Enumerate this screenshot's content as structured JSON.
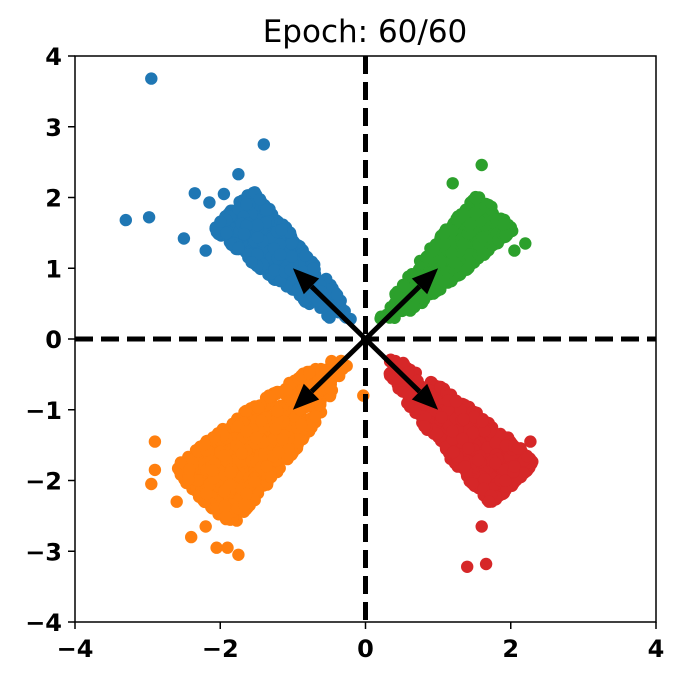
{
  "chart_data": {
    "type": "scatter",
    "title": "Epoch: 60/60",
    "xlabel": "",
    "ylabel": "",
    "xlim": [
      -4,
      4
    ],
    "ylim": [
      -4,
      4
    ],
    "xticks": [
      "−4",
      "−2",
      "0",
      "2",
      "4"
    ],
    "yticks": [
      "−4",
      "−3",
      "−2",
      "−1",
      "0",
      "1",
      "2",
      "3",
      "4"
    ],
    "xtick_values": [
      -4,
      -2,
      0,
      2,
      4
    ],
    "ytick_values": [
      -4,
      -3,
      -2,
      -1,
      0,
      1,
      2,
      3,
      4
    ],
    "grid": false,
    "reference_lines": [
      {
        "orientation": "vertical",
        "value": 0,
        "style": "dashed",
        "color": "#000000"
      },
      {
        "orientation": "horizontal",
        "value": 0,
        "style": "dashed",
        "color": "#000000"
      }
    ],
    "arrows": [
      {
        "from": [
          0,
          0
        ],
        "to": [
          1,
          1
        ]
      },
      {
        "from": [
          0,
          0
        ],
        "to": [
          -1,
          1
        ]
      },
      {
        "from": [
          0,
          0
        ],
        "to": [
          -1,
          -1
        ]
      },
      {
        "from": [
          0,
          0
        ],
        "to": [
          1,
          -1
        ]
      }
    ],
    "series": [
      {
        "color": "#1f77b4",
        "cluster": {
          "direction": [
            -1,
            1
          ],
          "count": 650,
          "r_min": 0.3,
          "r_max": 2.6,
          "spread": 0.25,
          "seed": 11
        },
        "points": [
          [
            -2.95,
            3.68
          ],
          [
            -1.4,
            2.75
          ],
          [
            -3.3,
            1.68
          ],
          [
            -2.98,
            1.72
          ],
          [
            -2.5,
            1.42
          ],
          [
            -2.35,
            2.06
          ],
          [
            -1.75,
            2.33
          ],
          [
            -2.15,
            1.93
          ],
          [
            -2.2,
            1.25
          ],
          [
            -1.95,
            2.05
          ]
        ]
      },
      {
        "color": "#2ca02c",
        "cluster": {
          "direction": [
            1,
            1
          ],
          "count": 650,
          "r_min": 0.3,
          "r_max": 2.55,
          "spread": 0.23,
          "seed": 23
        },
        "points": [
          [
            1.6,
            2.46
          ],
          [
            1.2,
            2.2
          ],
          [
            2.2,
            1.35
          ],
          [
            2.05,
            1.25
          ],
          [
            1.9,
            1.62
          ],
          [
            0.4,
            0.3
          ]
        ]
      },
      {
        "color": "#ff7f0e",
        "cluster": {
          "direction": [
            -1,
            -1
          ],
          "count": 900,
          "r_min": 0.3,
          "r_max": 3.2,
          "spread": 0.3,
          "seed": 37
        },
        "points": [
          [
            -0.03,
            -0.8
          ],
          [
            -2.9,
            -1.45
          ],
          [
            -2.9,
            -1.85
          ],
          [
            -2.95,
            -2.05
          ],
          [
            -2.4,
            -2.8
          ],
          [
            -2.05,
            -2.95
          ],
          [
            -1.75,
            -3.05
          ],
          [
            -1.9,
            -2.95
          ],
          [
            -2.6,
            -2.3
          ],
          [
            -2.2,
            -2.65
          ]
        ]
      },
      {
        "color": "#d62728",
        "cluster": {
          "direction": [
            1,
            -1
          ],
          "count": 700,
          "r_min": 0.3,
          "r_max": 2.9,
          "spread": 0.25,
          "seed": 51
        },
        "points": [
          [
            1.4,
            -3.22
          ],
          [
            1.66,
            -3.18
          ],
          [
            1.6,
            -2.65
          ],
          [
            2.27,
            -1.45
          ],
          [
            2.05,
            -1.8
          ],
          [
            1.7,
            -2.3
          ],
          [
            2.1,
            -1.55
          ]
        ]
      }
    ]
  }
}
